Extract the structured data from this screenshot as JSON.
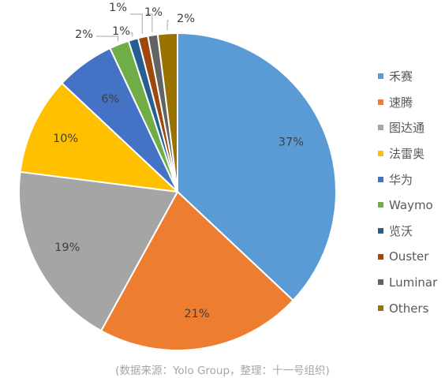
{
  "chart_data": {
    "type": "pie",
    "categories": [
      "禾赛",
      "速腾",
      "图达通",
      "法雷奥",
      "华为",
      "Waymo",
      "览沃",
      "Ouster",
      "Luminar",
      "Others"
    ],
    "values": [
      37,
      21,
      19,
      10,
      6,
      2,
      1,
      1,
      1,
      2
    ],
    "labels": [
      "37%",
      "21%",
      "19%",
      "10%",
      "6%",
      "2%",
      "1%",
      "1%",
      "1%",
      "2%"
    ],
    "colors": [
      "#5B9BD5",
      "#ED7D31",
      "#A5A5A5",
      "#FFC000",
      "#4472C4",
      "#70AD47",
      "#255E91",
      "#9E480E",
      "#636363",
      "#997300"
    ],
    "legend_position": "right"
  },
  "source_note": "(数据来源：Yolo Group，整理：十一号组织)"
}
